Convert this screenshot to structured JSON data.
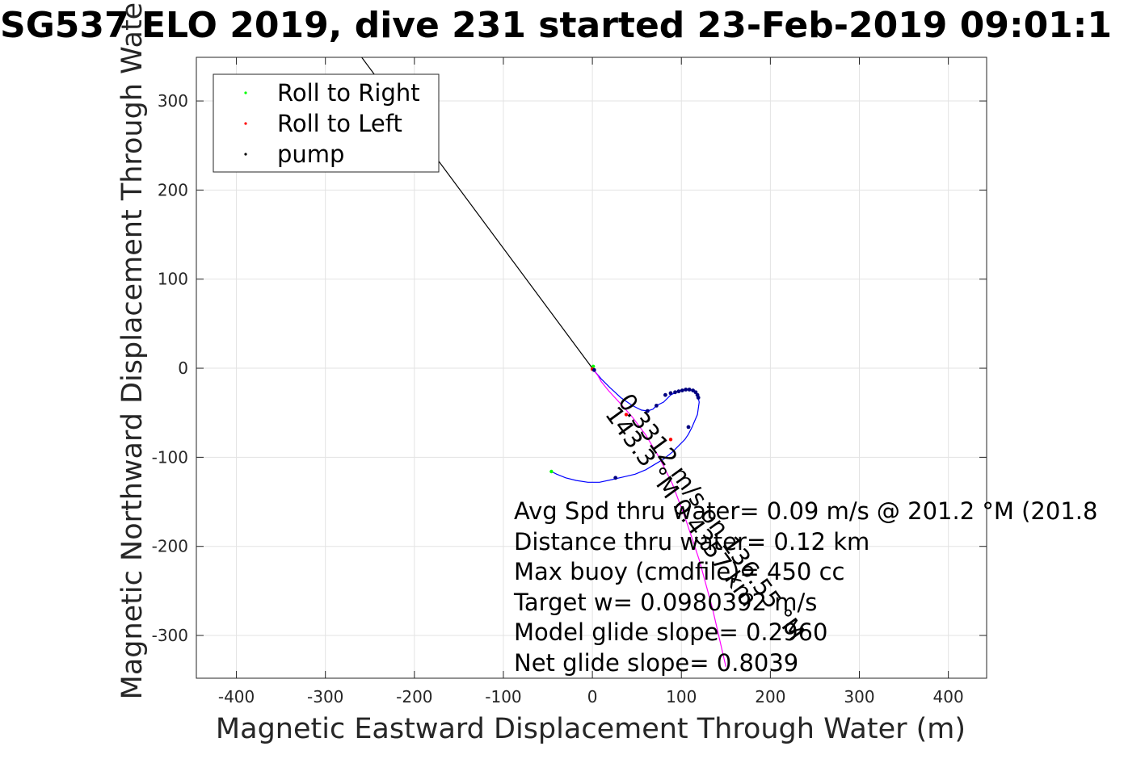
{
  "chart_data": {
    "type": "line",
    "title": "SG537 ELO 2019, dive 231 started 23-Feb-2019 09:01:1",
    "xlabel": "Magnetic Eastward Displacement Through Water (m)",
    "ylabel": "Magnetic Northward Displacement Through Water (",
    "xlim": [
      -445,
      443
    ],
    "ylim": [
      -348,
      349
    ],
    "xticks": [
      "-400",
      "-300",
      "-200",
      "-100",
      "0",
      "100",
      "200",
      "300",
      "400"
    ],
    "xtick_values": [
      -400,
      -300,
      -200,
      -100,
      0,
      100,
      200,
      300,
      400
    ],
    "yticks": [
      "-300",
      "-200",
      "-100",
      "0",
      "100",
      "200",
      "300"
    ],
    "ytick_values": [
      -300,
      -200,
      -100,
      0,
      100,
      200,
      300
    ],
    "grid": true,
    "legend_position": "top-left",
    "legend": [
      {
        "label": "Roll to Right",
        "color": "#00ff00"
      },
      {
        "label": "Roll to Left",
        "color": "#ff0000"
      },
      {
        "label": "pump",
        "color": "#000000"
      }
    ],
    "colors": {
      "track": "#0000ff",
      "current_vector": "#000000",
      "magenta_track": "#ff00ff",
      "grid": "#e3e3e3",
      "axes": "#262626"
    },
    "series": [
      {
        "name": "track",
        "x": [
          0,
          4,
          10,
          20,
          32,
          45,
          55,
          62,
          68,
          72,
          80,
          88,
          96,
          104,
          110,
          114,
          118,
          120,
          118,
          112,
          108,
          104,
          98,
          90,
          80,
          70,
          60,
          48,
          35,
          22,
          8,
          -5,
          -18,
          -30,
          -40,
          -46
        ],
        "y": [
          0,
          -5,
          -12,
          -22,
          -33,
          -42,
          -47,
          -48,
          -46,
          -42,
          -38,
          -30,
          -26,
          -24,
          -24,
          -26,
          -30,
          -38,
          -52,
          -66,
          -74,
          -80,
          -86,
          -94,
          -102,
          -108,
          -114,
          -119,
          -122,
          -125,
          -128,
          -128,
          -126,
          -123,
          -119,
          -116
        ]
      },
      {
        "name": "depth-averaged current",
        "x": [
          -260,
          0
        ],
        "y": [
          350,
          0
        ]
      },
      {
        "name": "magenta",
        "x": [
          0,
          2,
          6,
          10,
          18,
          30,
          45,
          60,
          75,
          90,
          105,
          120,
          135,
          150
        ],
        "y": [
          0,
          -3,
          -8,
          -15,
          -25,
          -38,
          -55,
          -75,
          -100,
          -130,
          -170,
          -215,
          -270,
          -335
        ]
      },
      {
        "name": "Roll to Right",
        "x": [
          -46,
          1
        ],
        "y": [
          -116,
          2
        ]
      },
      {
        "name": "Roll to Left",
        "x": [
          0,
          38,
          88
        ],
        "y": [
          -1,
          -52,
          -80
        ]
      },
      {
        "name": "pump",
        "x": [
          62,
          72,
          82,
          88,
          93,
          97,
          101,
          105,
          109,
          113,
          116,
          118,
          119,
          108,
          26,
          2
        ],
        "y": [
          -48,
          -42,
          -30,
          -28,
          -27,
          -26,
          -25,
          -24,
          -24,
          -25,
          -27,
          -30,
          -33,
          -66,
          -123,
          -2
        ]
      }
    ],
    "annotations": [
      "Avg Spd thru water=  0.09 m/s @ 201.2 °M (201.8",
      "Distance thru water=  0.12 km",
      "Max buoy (cmdfile)= 450 cc",
      "Target w= 0.0980392 m/s",
      "Model glide slope= 0.2960",
      "Net glide slope= 0.8039"
    ],
    "rotated_annotations": [
      "0.3312 m/s on 136.55 °M",
      "143.3 °M  0.4357 km"
    ]
  }
}
